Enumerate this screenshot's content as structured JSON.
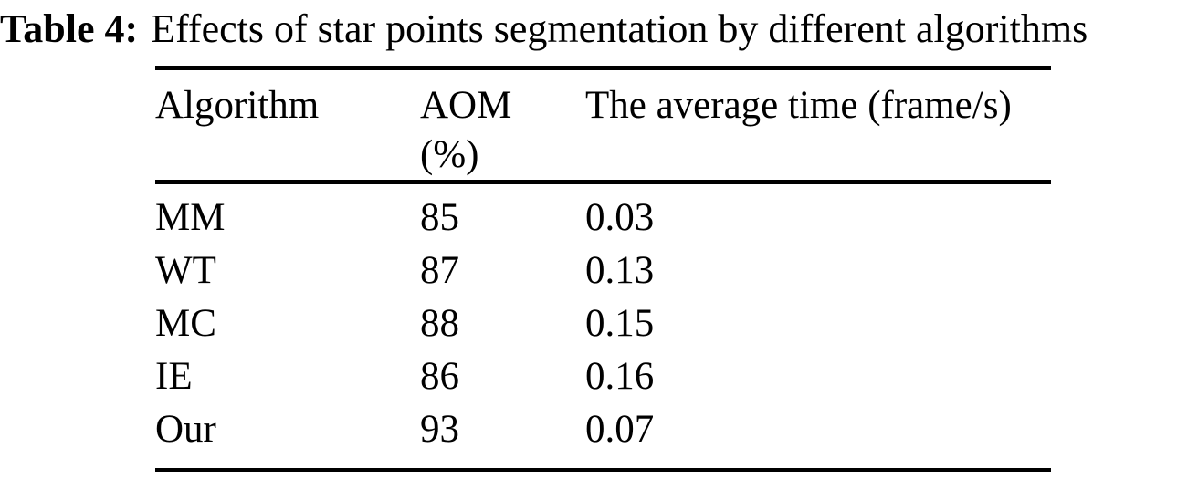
{
  "title": {
    "label": "Table 4:",
    "caption": "Effects of star points segmentation by different algorithms"
  },
  "table": {
    "column_headers": [
      "Algorithm",
      "AOM (%)",
      "The average time (frame/s)"
    ],
    "rows": [
      {
        "algorithm": "MM",
        "aom_percent": "85",
        "avg_time": "0.03"
      },
      {
        "algorithm": "WT",
        "aom_percent": "87",
        "avg_time": "0.13"
      },
      {
        "algorithm": "MC",
        "aom_percent": "88",
        "avg_time": "0.15"
      },
      {
        "algorithm": "IE",
        "aom_percent": "86",
        "avg_time": "0.16"
      },
      {
        "algorithm": "Our",
        "aom_percent": "93",
        "avg_time": "0.07"
      }
    ]
  },
  "colors": {
    "text": "#000000",
    "background": "#ffffff",
    "rule": "#000000"
  }
}
